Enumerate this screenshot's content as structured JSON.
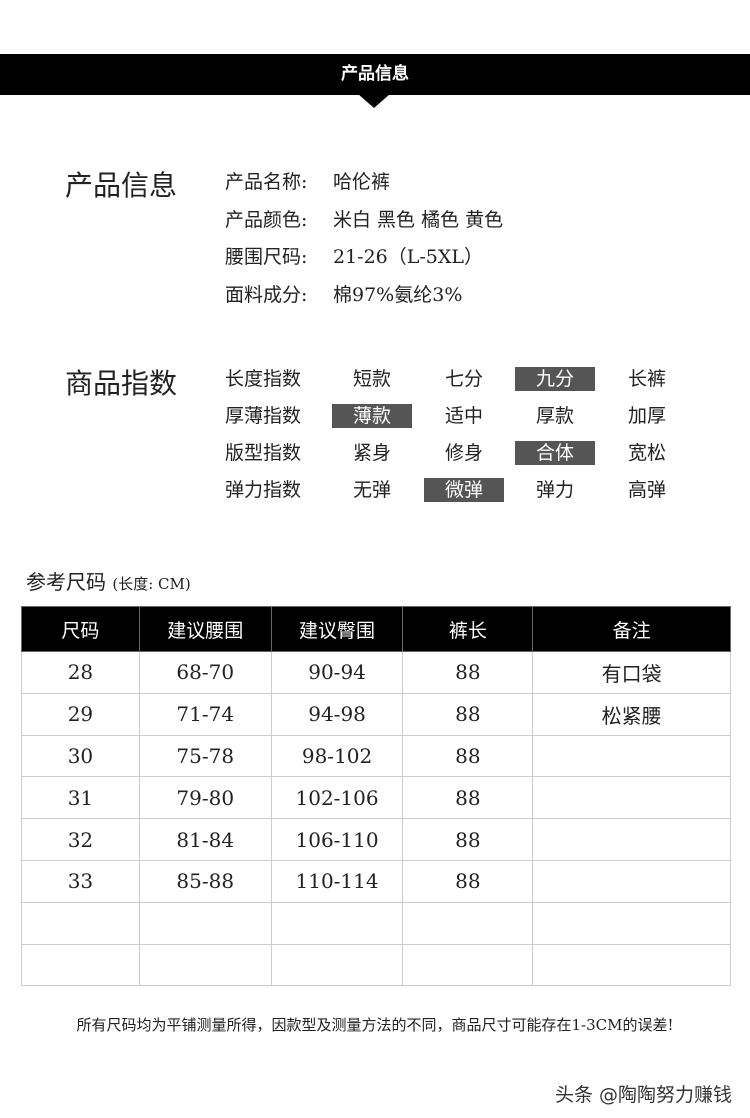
{
  "banner": {
    "title": "产品信息"
  },
  "product_info": {
    "title": "产品信息",
    "rows": [
      {
        "label": "产品名称:",
        "value": "哈伦裤"
      },
      {
        "label": "产品颜色:",
        "value": "米白  黑色  橘色  黄色"
      },
      {
        "label": "腰围尺码:",
        "value": "21-26（L-5XL）"
      },
      {
        "label": "面料成分:",
        "value": "棉97%氨纶3%"
      }
    ]
  },
  "index": {
    "title": "商品指数",
    "rows": [
      {
        "label": "长度指数",
        "options": [
          "短款",
          "七分",
          "九分",
          "长裤"
        ],
        "selected": 2
      },
      {
        "label": "厚薄指数",
        "options": [
          "薄款",
          "适中",
          "厚款",
          "加厚"
        ],
        "selected": 0
      },
      {
        "label": "版型指数",
        "options": [
          "紧身",
          "修身",
          "合体",
          "宽松"
        ],
        "selected": 2
      },
      {
        "label": "弹力指数",
        "options": [
          "无弹",
          "微弹",
          "弹力",
          "高弹"
        ],
        "selected": 1
      }
    ]
  },
  "size": {
    "title": "参考尺码",
    "unit": "(长度: CM)",
    "headers": [
      "尺码",
      "建议腰围",
      "建议臀围",
      "裤长",
      "备注"
    ],
    "rows": [
      [
        "28",
        "68-70",
        "90-94",
        "88",
        "有口袋"
      ],
      [
        "29",
        "71-74",
        "94-98",
        "88",
        "松紧腰"
      ],
      [
        "30",
        "75-78",
        "98-102",
        "88",
        ""
      ],
      [
        "31",
        "79-80",
        "102-106",
        "88",
        ""
      ],
      [
        "32",
        "81-84",
        "106-110",
        "88",
        ""
      ],
      [
        "33",
        "85-88",
        "110-114",
        "88",
        ""
      ],
      [
        "",
        "",
        "",
        "",
        ""
      ],
      [
        "",
        "",
        "",
        "",
        ""
      ]
    ]
  },
  "note": "所有尺码均为平铺测量所得，因款型及测量方法的不同，商品尺寸可能存在1-3CM的误差!",
  "watermark": "头条 @陶陶努力赚钱",
  "colors": {
    "banner": "#000000",
    "selected_option": "#555555"
  }
}
